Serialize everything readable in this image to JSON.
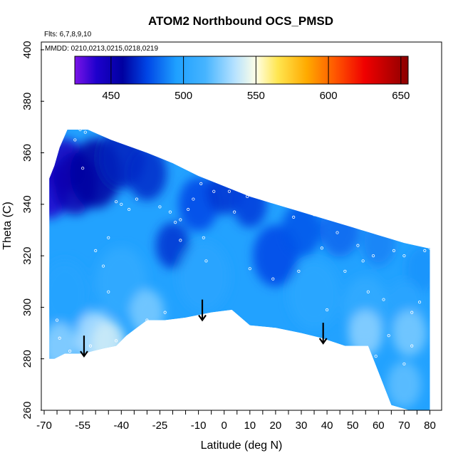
{
  "chart_data": {
    "type": "heatmap",
    "title": "ATOM2 Northbound OCS_PMSD",
    "xlabel": "Latitude (deg N)",
    "ylabel": "Theta (C)",
    "xlim": [
      -70,
      80
    ],
    "ylim": [
      260,
      400
    ],
    "x_ticks": [
      "-70",
      "-55",
      "-40",
      "-25",
      "-10",
      "0",
      "10",
      "20",
      "30",
      "40",
      "50",
      "60",
      "70",
      "80"
    ],
    "x_tick_values": [
      -70,
      -55,
      -40,
      -25,
      -10,
      0,
      10,
      20,
      30,
      40,
      50,
      60,
      70,
      80
    ],
    "x_minor_step": 5,
    "y_ticks": [
      "260",
      "280",
      "300",
      "320",
      "340",
      "360",
      "380",
      "400"
    ],
    "y_tick_values": [
      260,
      280,
      300,
      320,
      340,
      360,
      380,
      400
    ],
    "annotations": {
      "flights": "Flts: 6,7,8,9,10",
      "dates": "MMDD: 0210,0213,0215,0218,0219"
    },
    "colorbar": {
      "range": [
        425,
        655
      ],
      "ticks": [
        "450",
        "500",
        "550",
        "600",
        "650"
      ],
      "tick_values": [
        450,
        500,
        550,
        600,
        650
      ],
      "colors": [
        {
          "value": 425,
          "color": "#7b14e8"
        },
        {
          "value": 440,
          "color": "#1e00cc"
        },
        {
          "value": 458,
          "color": "#0000a0"
        },
        {
          "value": 475,
          "color": "#0046e6"
        },
        {
          "value": 495,
          "color": "#1ea0ff"
        },
        {
          "value": 515,
          "color": "#46b4ff"
        },
        {
          "value": 535,
          "color": "#b4e1ff"
        },
        {
          "value": 550,
          "color": "#ffffe6"
        },
        {
          "value": 565,
          "color": "#ffe650"
        },
        {
          "value": 585,
          "color": "#ffaa00"
        },
        {
          "value": 605,
          "color": "#ff5500"
        },
        {
          "value": 625,
          "color": "#f00000"
        },
        {
          "value": 655,
          "color": "#8c0000"
        }
      ]
    },
    "data_envelope": {
      "top": [
        {
          "lat": -68,
          "theta": 340
        },
        {
          "lat": -68,
          "theta": 350
        },
        {
          "lat": -66,
          "theta": 355
        },
        {
          "lat": -64,
          "theta": 362
        },
        {
          "lat": -61,
          "theta": 369
        },
        {
          "lat": -53,
          "theta": 369
        },
        {
          "lat": -44,
          "theta": 365
        },
        {
          "lat": -30,
          "theta": 360
        },
        {
          "lat": -20,
          "theta": 356
        },
        {
          "lat": -10,
          "theta": 351
        },
        {
          "lat": 0,
          "theta": 347
        },
        {
          "lat": 10,
          "theta": 343
        },
        {
          "lat": 20,
          "theta": 340
        },
        {
          "lat": 30,
          "theta": 337
        },
        {
          "lat": 40,
          "theta": 334
        },
        {
          "lat": 50,
          "theta": 331
        },
        {
          "lat": 60,
          "theta": 328
        },
        {
          "lat": 70,
          "theta": 325
        },
        {
          "lat": 79,
          "theta": 323
        },
        {
          "lat": 80,
          "theta": 323
        }
      ],
      "bottom": [
        {
          "lat": 80,
          "theta": 260
        },
        {
          "lat": 72,
          "theta": 260
        },
        {
          "lat": 65,
          "theta": 262
        },
        {
          "lat": 56,
          "theta": 285
        },
        {
          "lat": 47,
          "theta": 285
        },
        {
          "lat": 38,
          "theta": 288
        },
        {
          "lat": 30,
          "theta": 290
        },
        {
          "lat": 20,
          "theta": 292
        },
        {
          "lat": 10,
          "theta": 293
        },
        {
          "lat": 3,
          "theta": 299
        },
        {
          "lat": -5,
          "theta": 298
        },
        {
          "lat": -15,
          "theta": 296
        },
        {
          "lat": -23,
          "theta": 295
        },
        {
          "lat": -30,
          "theta": 295
        },
        {
          "lat": -34,
          "theta": 292
        },
        {
          "lat": -38,
          "theta": 289
        },
        {
          "lat": -42,
          "theta": 285
        },
        {
          "lat": -47,
          "theta": 284
        },
        {
          "lat": -55,
          "theta": 282
        },
        {
          "lat": -62,
          "theta": 282
        },
        {
          "lat": -66,
          "theta": 280
        },
        {
          "lat": -68,
          "theta": 280
        }
      ]
    },
    "field_features": [
      {
        "lat": -68,
        "theta": 345,
        "value": 440,
        "radius": 14
      },
      {
        "lat": -62,
        "theta": 355,
        "value": 445,
        "radius": 14
      },
      {
        "lat": -58,
        "theta": 348,
        "value": 452,
        "radius": 16
      },
      {
        "lat": -50,
        "theta": 352,
        "value": 458,
        "radius": 18
      },
      {
        "lat": -40,
        "theta": 358,
        "value": 465,
        "radius": 16
      },
      {
        "lat": -30,
        "theta": 352,
        "value": 468,
        "radius": 14
      },
      {
        "lat": -20,
        "theta": 324,
        "value": 470,
        "radius": 12
      },
      {
        "lat": -10,
        "theta": 340,
        "value": 475,
        "radius": 14
      },
      {
        "lat": 0,
        "theta": 345,
        "value": 470,
        "radius": 12
      },
      {
        "lat": 10,
        "theta": 340,
        "value": 472,
        "radius": 12
      },
      {
        "lat": 20,
        "theta": 320,
        "value": 475,
        "radius": 16
      },
      {
        "lat": 30,
        "theta": 330,
        "value": 478,
        "radius": 14
      },
      {
        "lat": 45,
        "theta": 330,
        "value": 482,
        "radius": 14
      },
      {
        "lat": 60,
        "theta": 325,
        "value": 488,
        "radius": 12
      },
      {
        "lat": 77,
        "theta": 315,
        "value": 492,
        "radius": 12
      },
      {
        "lat": -62,
        "theta": 305,
        "value": 498,
        "radius": 18
      },
      {
        "lat": -40,
        "theta": 310,
        "value": 505,
        "radius": 18
      },
      {
        "lat": -8,
        "theta": 312,
        "value": 500,
        "radius": 18
      },
      {
        "lat": 35,
        "theta": 305,
        "value": 502,
        "radius": 18
      },
      {
        "lat": 55,
        "theta": 300,
        "value": 505,
        "radius": 16
      },
      {
        "lat": 70,
        "theta": 300,
        "value": 500,
        "radius": 14
      },
      {
        "lat": -50,
        "theta": 288,
        "value": 535,
        "radius": 14
      },
      {
        "lat": -45,
        "theta": 286,
        "value": 540,
        "radius": 12
      },
      {
        "lat": -64,
        "theta": 285,
        "value": 528,
        "radius": 12
      },
      {
        "lat": -30,
        "theta": 298,
        "value": 525,
        "radius": 12
      },
      {
        "lat": 55,
        "theta": 290,
        "value": 528,
        "radius": 12
      },
      {
        "lat": 72,
        "theta": 290,
        "value": 525,
        "radius": 12
      },
      {
        "lat": 70,
        "theta": 270,
        "value": 520,
        "radius": 12
      }
    ],
    "samples": [
      {
        "lat": -56,
        "theta": 369
      },
      {
        "lat": -54,
        "theta": 368
      },
      {
        "lat": -51,
        "theta": 369
      },
      {
        "lat": -58,
        "theta": 365
      },
      {
        "lat": -55,
        "theta": 354
      },
      {
        "lat": -42,
        "theta": 341
      },
      {
        "lat": -40,
        "theta": 340
      },
      {
        "lat": -34,
        "theta": 342
      },
      {
        "lat": -25,
        "theta": 339
      },
      {
        "lat": -21,
        "theta": 337
      },
      {
        "lat": -19,
        "theta": 333
      },
      {
        "lat": -17,
        "theta": 334
      },
      {
        "lat": -17,
        "theta": 326
      },
      {
        "lat": -14,
        "theta": 338
      },
      {
        "lat": -12,
        "theta": 342
      },
      {
        "lat": -9,
        "theta": 348
      },
      {
        "lat": -8,
        "theta": 327
      },
      {
        "lat": -7,
        "theta": 318
      },
      {
        "lat": -4,
        "theta": 345
      },
      {
        "lat": 2,
        "theta": 345
      },
      {
        "lat": 4,
        "theta": 337
      },
      {
        "lat": 9,
        "theta": 343
      },
      {
        "lat": 10,
        "theta": 315
      },
      {
        "lat": 13,
        "theta": 343
      },
      {
        "lat": 19,
        "theta": 311
      },
      {
        "lat": 27,
        "theta": 335
      },
      {
        "lat": 29,
        "theta": 314
      },
      {
        "lat": 35,
        "theta": 336
      },
      {
        "lat": 38,
        "theta": 323
      },
      {
        "lat": 40,
        "theta": 299
      },
      {
        "lat": 44,
        "theta": 329
      },
      {
        "lat": 47,
        "theta": 314
      },
      {
        "lat": 52,
        "theta": 324
      },
      {
        "lat": 54,
        "theta": 318
      },
      {
        "lat": 56,
        "theta": 306
      },
      {
        "lat": 58,
        "theta": 320
      },
      {
        "lat": 62,
        "theta": 303
      },
      {
        "lat": 66,
        "theta": 322
      },
      {
        "lat": 70,
        "theta": 320
      },
      {
        "lat": 73,
        "theta": 298
      },
      {
        "lat": 76,
        "theta": 302
      },
      {
        "lat": 78,
        "theta": 322
      },
      {
        "lat": 80,
        "theta": 323
      },
      {
        "lat": -65,
        "theta": 295
      },
      {
        "lat": -64,
        "theta": 288
      },
      {
        "lat": -60,
        "theta": 283
      },
      {
        "lat": -52,
        "theta": 285
      },
      {
        "lat": -50,
        "theta": 322
      },
      {
        "lat": -47,
        "theta": 316
      },
      {
        "lat": -45,
        "theta": 306
      },
      {
        "lat": -42,
        "theta": 287
      },
      {
        "lat": -30,
        "theta": 295
      },
      {
        "lat": -23,
        "theta": 298
      },
      {
        "lat": -45,
        "theta": 327
      },
      {
        "lat": -37,
        "theta": 338
      },
      {
        "lat": 64,
        "theta": 289
      },
      {
        "lat": 59,
        "theta": 281
      },
      {
        "lat": 70,
        "theta": 278
      },
      {
        "lat": 73,
        "theta": 285
      }
    ],
    "arrows": [
      {
        "lat": -54.5,
        "theta_from": 289,
        "theta_to": 281
      },
      {
        "lat": -8.5,
        "theta_from": 303,
        "theta_to": 295
      },
      {
        "lat": 38.5,
        "theta_from": 294,
        "theta_to": 286
      }
    ]
  }
}
